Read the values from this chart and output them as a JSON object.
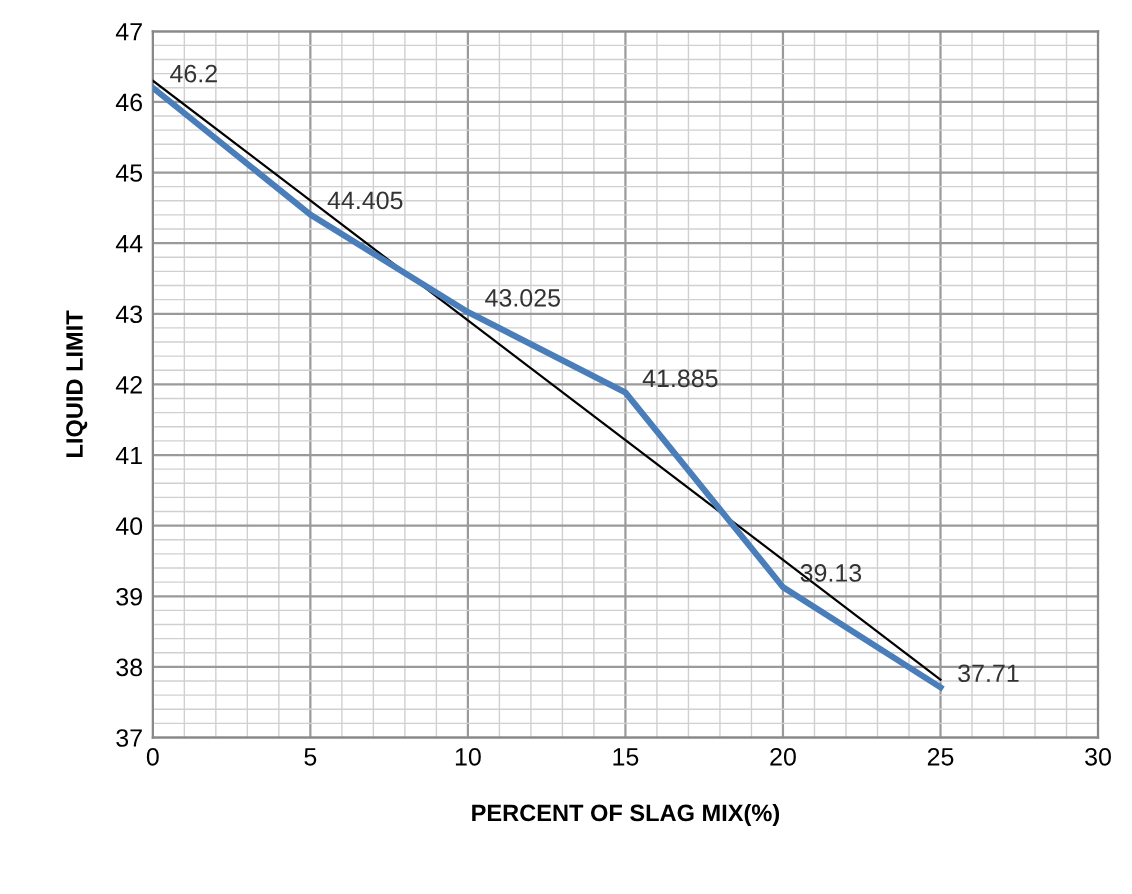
{
  "chart_data": {
    "type": "line",
    "xlabel": "PERCENT OF SLAG MIX(%)",
    "ylabel": "LIQUID LIMIT",
    "xlim": [
      0,
      30
    ],
    "xticks": [
      0,
      5,
      10,
      15,
      20,
      25,
      30
    ],
    "ylim": [
      37,
      47
    ],
    "yticks": [
      37,
      38,
      39,
      40,
      41,
      42,
      43,
      44,
      45,
      46,
      47
    ],
    "grid": true,
    "series": [
      {
        "color": "#4a7ebb",
        "x": [
          0,
          5,
          10,
          15,
          20,
          25
        ],
        "values": [
          46.2,
          44.405,
          43.025,
          41.885,
          39.13,
          37.71
        ],
        "data_labels": true
      },
      {
        "color": "#000000",
        "x": [
          0,
          25
        ],
        "values": [
          46.3,
          37.82
        ],
        "line_style": "solid"
      }
    ]
  }
}
